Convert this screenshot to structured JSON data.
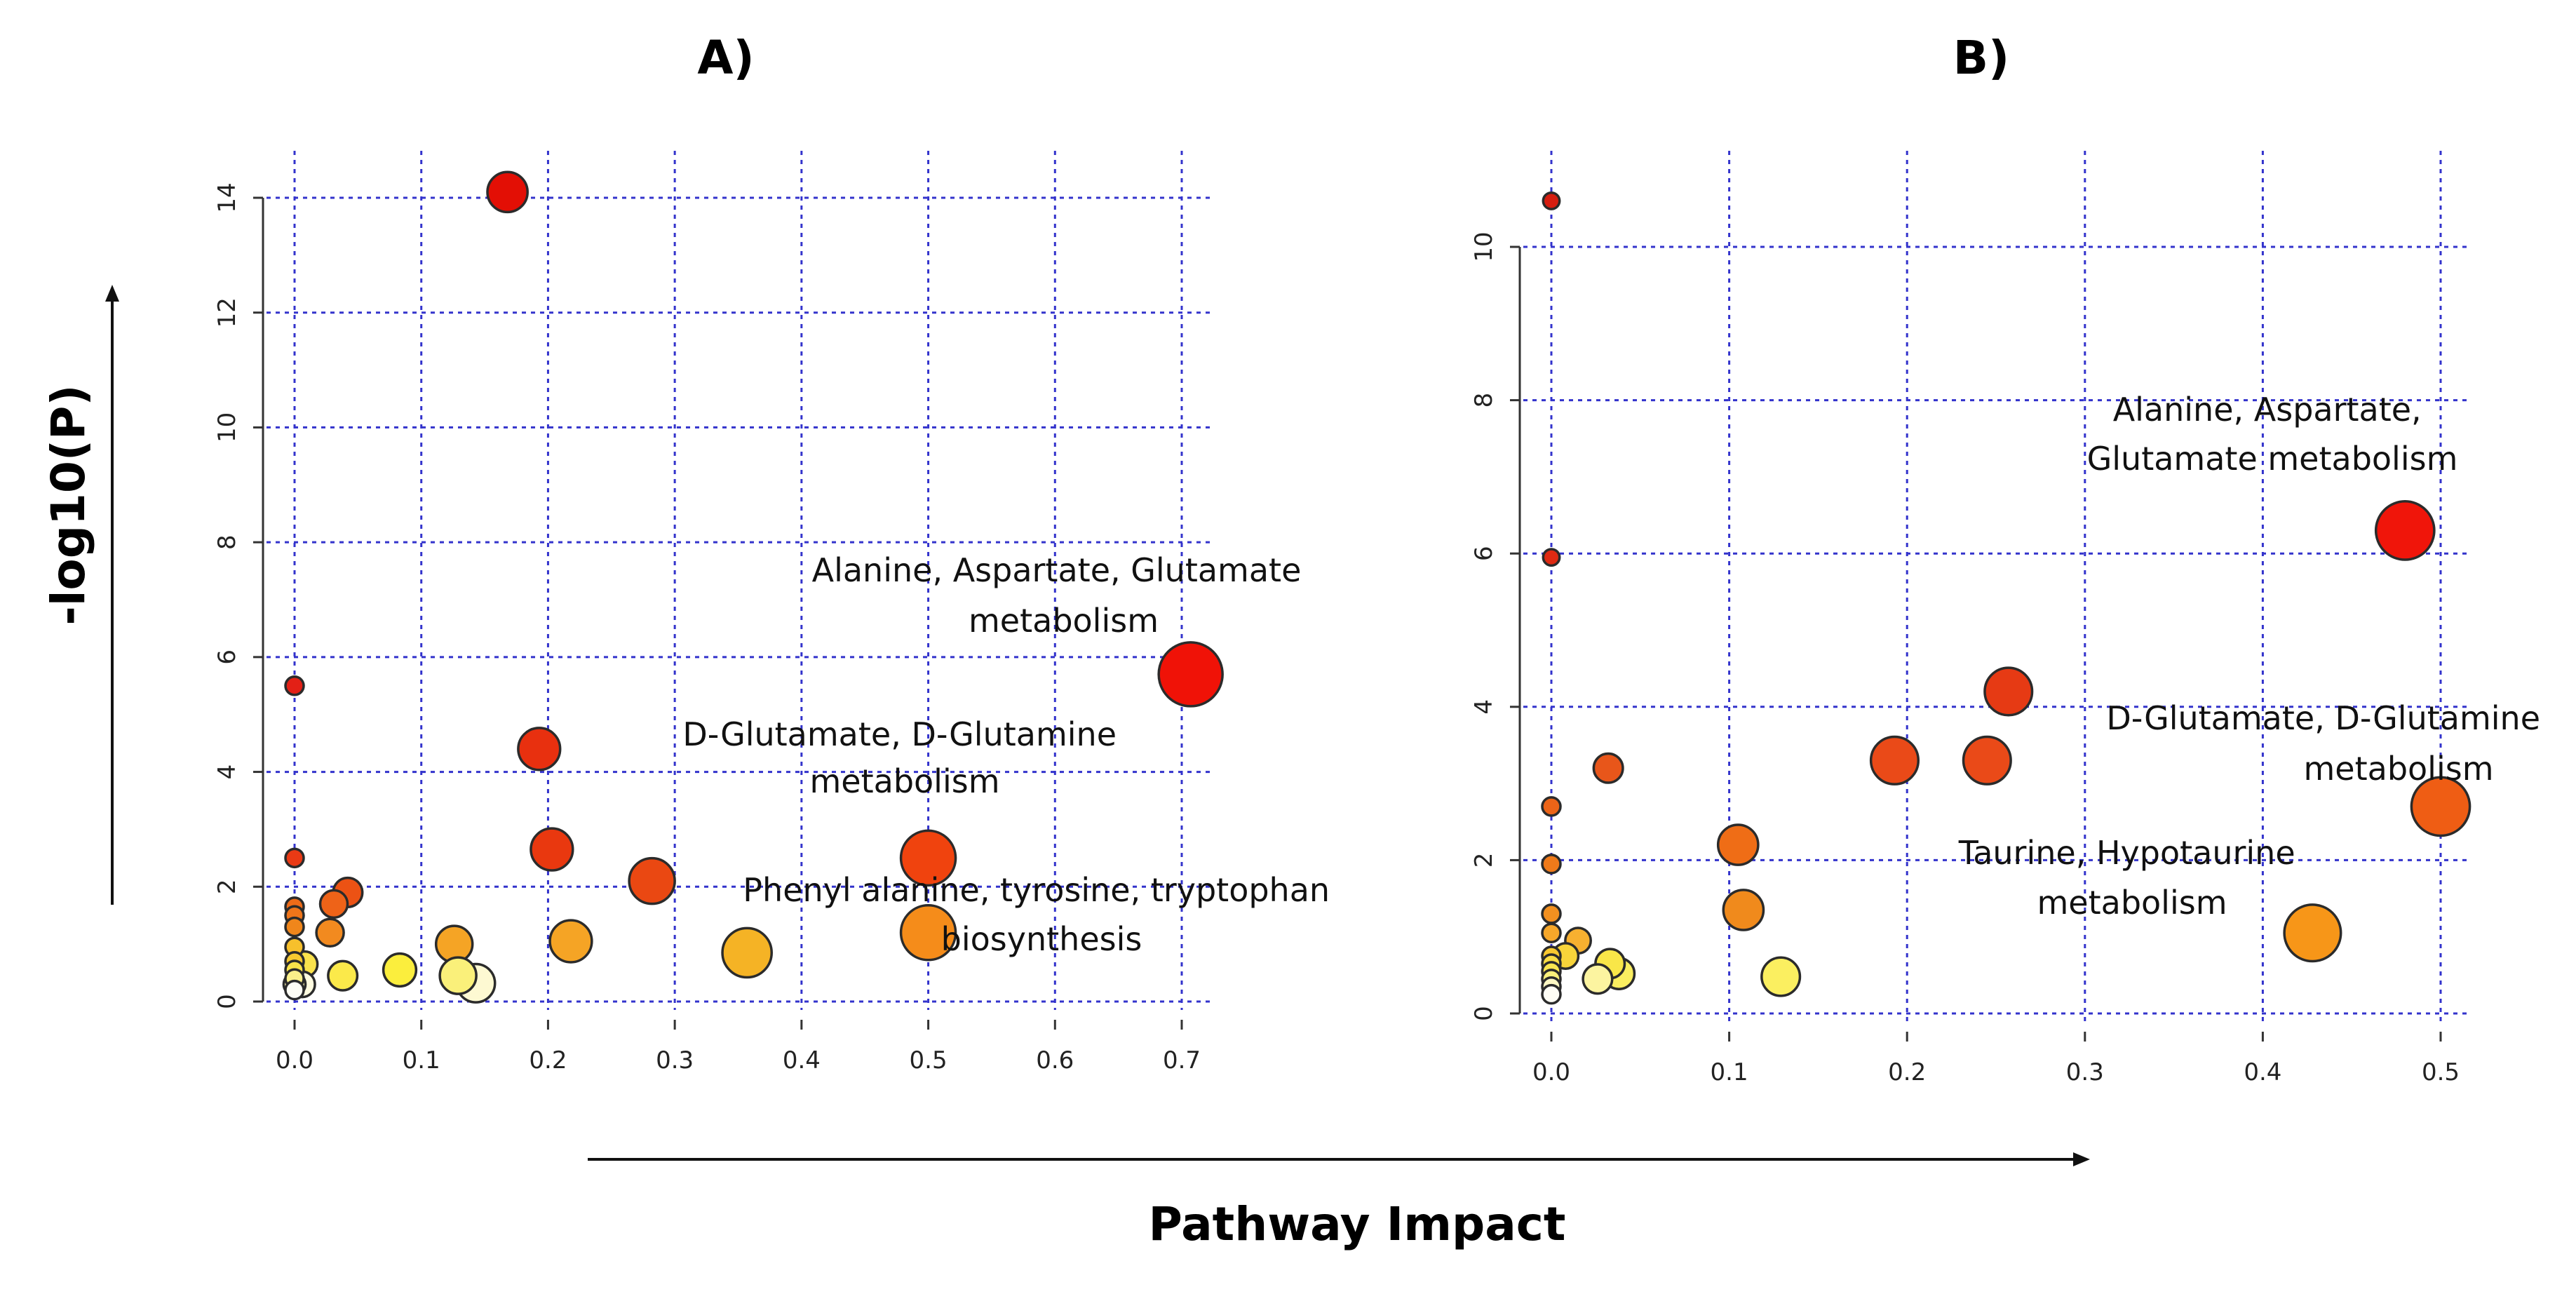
{
  "figure": {
    "y_axis_title": "-log10(P)",
    "x_axis_title": "Pathway Impact"
  },
  "chart_data": [
    {
      "type": "scatter",
      "panel_label": "A)",
      "xlabel": "Pathway Impact",
      "ylabel": "-log10(P)",
      "xlim": [
        0.0,
        0.7
      ],
      "ylim": [
        0,
        14
      ],
      "x_ticks": [
        "0.0",
        "0.1",
        "0.2",
        "0.3",
        "0.4",
        "0.5",
        "0.6",
        "0.7"
      ],
      "y_ticks": [
        "0",
        "2",
        "4",
        "6",
        "8",
        "10",
        "12",
        "14"
      ],
      "grid": true,
      "points": [
        {
          "x": 0.168,
          "y": 14.1,
          "size": 2.2,
          "color": "#e30f05"
        },
        {
          "x": 0.707,
          "y": 5.7,
          "size": 3.5,
          "color": "#f01207"
        },
        {
          "x": 0.0,
          "y": 5.5,
          "size": 1.0,
          "color": "#e32016"
        },
        {
          "x": 0.193,
          "y": 4.4,
          "size": 2.3,
          "color": "#e8300f"
        },
        {
          "x": 0.203,
          "y": 2.65,
          "size": 2.3,
          "color": "#e9380f"
        },
        {
          "x": 0.5,
          "y": 2.5,
          "size": 3.0,
          "color": "#f0430e"
        },
        {
          "x": 0.282,
          "y": 2.1,
          "size": 2.5,
          "color": "#ea4812"
        },
        {
          "x": 0.0,
          "y": 2.5,
          "size": 1.0,
          "color": "#ea3a15"
        },
        {
          "x": 0.042,
          "y": 1.9,
          "size": 1.6,
          "color": "#ec5214"
        },
        {
          "x": 0.031,
          "y": 1.7,
          "size": 1.5,
          "color": "#ee6318"
        },
        {
          "x": 0.0,
          "y": 1.65,
          "size": 1.0,
          "color": "#ee6b18"
        },
        {
          "x": 0.0,
          "y": 1.5,
          "size": 1.0,
          "color": "#ef751a"
        },
        {
          "x": 0.0,
          "y": 1.3,
          "size": 1.0,
          "color": "#f0861b"
        },
        {
          "x": 0.028,
          "y": 1.2,
          "size": 1.5,
          "color": "#f28a1f"
        },
        {
          "x": 0.5,
          "y": 1.2,
          "size": 3.0,
          "color": "#f58c1a"
        },
        {
          "x": 0.126,
          "y": 1.0,
          "size": 2.0,
          "color": "#f5a425"
        },
        {
          "x": 0.218,
          "y": 1.05,
          "size": 2.3,
          "color": "#f5a425"
        },
        {
          "x": 0.0,
          "y": 0.95,
          "size": 1.0,
          "color": "#f7c02c"
        },
        {
          "x": 0.357,
          "y": 0.85,
          "size": 2.7,
          "color": "#f5b325"
        },
        {
          "x": 0.0,
          "y": 0.7,
          "size": 1.0,
          "color": "#f6c930"
        },
        {
          "x": 0.0,
          "y": 0.55,
          "size": 1.0,
          "color": "#f9e24a"
        },
        {
          "x": 0.008,
          "y": 0.65,
          "size": 1.4,
          "color": "#fae24c"
        },
        {
          "x": 0.083,
          "y": 0.55,
          "size": 1.8,
          "color": "#fbee3d"
        },
        {
          "x": 0.038,
          "y": 0.45,
          "size": 1.6,
          "color": "#fbe94a"
        },
        {
          "x": 0.129,
          "y": 0.45,
          "size": 2.0,
          "color": "#faf07a"
        },
        {
          "x": 0.0,
          "y": 0.4,
          "size": 1.0,
          "color": "#fbf08a"
        },
        {
          "x": 0.0,
          "y": 0.3,
          "size": 1.2,
          "color": "#fdf7b0"
        },
        {
          "x": 0.143,
          "y": 0.32,
          "size": 2.1,
          "color": "#fdf9d2"
        },
        {
          "x": 0.006,
          "y": 0.3,
          "size": 1.4,
          "color": "#fefbe0"
        },
        {
          "x": 0.0,
          "y": 0.2,
          "size": 1.0,
          "color": "#fdfdf5"
        }
      ],
      "annotations": [
        {
          "lines": [
            "Alanine, Aspartate, Glutamate",
            "metabolism"
          ]
        },
        {
          "lines": [
            "D-Glutamate, D-Glutamine",
            "metabolism"
          ]
        },
        {
          "lines": [
            "Phenyl alanine, tyrosine, tryptophan",
            "biosynthesis"
          ]
        }
      ]
    },
    {
      "type": "scatter",
      "panel_label": "B)",
      "xlabel": "Pathway Impact",
      "ylabel": "-log10(P)",
      "xlim": [
        0.0,
        0.5
      ],
      "ylim": [
        0,
        10
      ],
      "x_ticks": [
        "0.0",
        "0.1",
        "0.2",
        "0.3",
        "0.4",
        "0.5"
      ],
      "y_ticks": [
        "0",
        "2",
        "4",
        "6",
        "8",
        "10"
      ],
      "grid": true,
      "points": [
        {
          "x": 0.0,
          "y": 10.6,
          "size": 0.9,
          "color": "#d61d10"
        },
        {
          "x": 0.0,
          "y": 5.95,
          "size": 0.9,
          "color": "#df2a12"
        },
        {
          "x": 0.48,
          "y": 6.3,
          "size": 3.2,
          "color": "#f0150a"
        },
        {
          "x": 0.257,
          "y": 4.2,
          "size": 2.6,
          "color": "#e63a14"
        },
        {
          "x": 0.032,
          "y": 3.2,
          "size": 1.6,
          "color": "#e8561a"
        },
        {
          "x": 0.193,
          "y": 3.3,
          "size": 2.6,
          "color": "#ea4a18"
        },
        {
          "x": 0.245,
          "y": 3.3,
          "size": 2.6,
          "color": "#ea4a18"
        },
        {
          "x": 0.0,
          "y": 2.7,
          "size": 1.0,
          "color": "#ec6418"
        },
        {
          "x": 0.5,
          "y": 2.7,
          "size": 3.2,
          "color": "#ef5d14"
        },
        {
          "x": 0.105,
          "y": 2.2,
          "size": 2.2,
          "color": "#ef6d16"
        },
        {
          "x": 0.0,
          "y": 1.95,
          "size": 1.0,
          "color": "#ef7a1a"
        },
        {
          "x": 0.108,
          "y": 1.35,
          "size": 2.2,
          "color": "#f08a1c"
        },
        {
          "x": 0.0,
          "y": 1.3,
          "size": 1.0,
          "color": "#f29020"
        },
        {
          "x": 0.428,
          "y": 1.05,
          "size": 3.1,
          "color": "#f79618"
        },
        {
          "x": 0.0,
          "y": 1.05,
          "size": 1.0,
          "color": "#f6a72a"
        },
        {
          "x": 0.015,
          "y": 0.95,
          "size": 1.4,
          "color": "#f7b030"
        },
        {
          "x": 0.0,
          "y": 0.75,
          "size": 1.0,
          "color": "#f8c830"
        },
        {
          "x": 0.008,
          "y": 0.75,
          "size": 1.4,
          "color": "#f8d43a"
        },
        {
          "x": 0.033,
          "y": 0.65,
          "size": 1.6,
          "color": "#f9e648"
        },
        {
          "x": 0.0,
          "y": 0.65,
          "size": 1.0,
          "color": "#f9dc44"
        },
        {
          "x": 0.0,
          "y": 0.55,
          "size": 1.0,
          "color": "#fae650"
        },
        {
          "x": 0.038,
          "y": 0.52,
          "size": 1.7,
          "color": "#faee60"
        },
        {
          "x": 0.129,
          "y": 0.48,
          "size": 2.1,
          "color": "#fbef60"
        },
        {
          "x": 0.0,
          "y": 0.45,
          "size": 1.0,
          "color": "#fbf07a"
        },
        {
          "x": 0.026,
          "y": 0.45,
          "size": 1.6,
          "color": "#fcf4a0"
        },
        {
          "x": 0.0,
          "y": 0.35,
          "size": 1.0,
          "color": "#fdf8c4"
        },
        {
          "x": 0.0,
          "y": 0.25,
          "size": 1.0,
          "color": "#fefdf5"
        }
      ],
      "annotations": [
        {
          "lines": [
            "Alanine, Aspartate,",
            "Glutamate metabolism"
          ]
        },
        {
          "lines": [
            "D-Glutamate, D-Glutamine",
            "metabolism"
          ]
        },
        {
          "lines": [
            "Taurine, Hypotaurine",
            "metabolism"
          ]
        }
      ]
    }
  ]
}
